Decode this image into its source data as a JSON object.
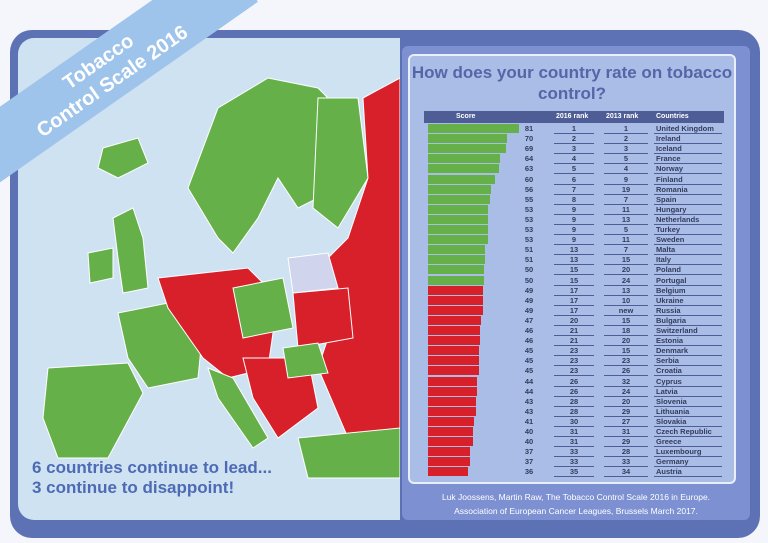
{
  "banner": {
    "line1": "Tobacco",
    "line2": "Control Scale 2016"
  },
  "lead_text": {
    "line1": "6 countries continue to lead...",
    "line2": "3 continue to disappoint!"
  },
  "footer": {
    "line1": "Luk Joossens, Martin Raw, The Tobacco Control Scale 2016 in Europe.",
    "line2": "Association of European Cancer Leagues, Brussels March 2017."
  },
  "colors": {
    "green": "#66b04a",
    "red": "#d8202a",
    "frame": "#5c72b4"
  },
  "chart_data": {
    "type": "bar",
    "title": "How does your country rate on tobacco control?",
    "columns": [
      "Score",
      "2016 rank",
      "2013 rank",
      "Countries"
    ],
    "rows": [
      [
        "81",
        "1",
        "1",
        "United Kingdom"
      ],
      [
        "70",
        "2",
        "2",
        "Ireland"
      ],
      [
        "69",
        "3",
        "3",
        "Iceland"
      ],
      [
        "64",
        "4",
        "5",
        "France"
      ],
      [
        "63",
        "5",
        "4",
        "Norway"
      ],
      [
        "60",
        "6",
        "9",
        "Finland"
      ],
      [
        "56",
        "7",
        "19",
        "Romania"
      ],
      [
        "55",
        "8",
        "7",
        "Spain"
      ],
      [
        "53",
        "9",
        "11",
        "Hungary"
      ],
      [
        "53",
        "9",
        "13",
        "Netherlands"
      ],
      [
        "53",
        "9",
        "5",
        "Turkey"
      ],
      [
        "53",
        "9",
        "11",
        "Sweden"
      ],
      [
        "51",
        "13",
        "7",
        "Malta"
      ],
      [
        "51",
        "13",
        "15",
        "Italy"
      ],
      [
        "50",
        "15",
        "20",
        "Poland"
      ],
      [
        "50",
        "15",
        "24",
        "Portugal"
      ],
      [
        "49",
        "17",
        "13",
        "Belgium"
      ],
      [
        "49",
        "17",
        "10",
        "Ukraine"
      ],
      [
        "49",
        "17",
        "new",
        "Russia"
      ],
      [
        "47",
        "20",
        "15",
        "Bulgaria"
      ],
      [
        "46",
        "21",
        "18",
        "Switzerland"
      ],
      [
        "46",
        "21",
        "20",
        "Estonia"
      ],
      [
        "45",
        "23",
        "15",
        "Denmark"
      ],
      [
        "45",
        "23",
        "23",
        "Serbia"
      ],
      [
        "45",
        "23",
        "26",
        "Croatia"
      ],
      [
        "44",
        "26",
        "32",
        "Cyprus"
      ],
      [
        "44",
        "26",
        "24",
        "Latvia"
      ],
      [
        "43",
        "28",
        "20",
        "Slovenia"
      ],
      [
        "43",
        "28",
        "29",
        "Lithuania"
      ],
      [
        "41",
        "30",
        "27",
        "Slovakia"
      ],
      [
        "40",
        "31",
        "31",
        "Czech Republic"
      ],
      [
        "40",
        "31",
        "29",
        "Greece"
      ],
      [
        "37",
        "33",
        "28",
        "Luxembourg"
      ],
      [
        "37",
        "33",
        "33",
        "Germany"
      ],
      [
        "36",
        "35",
        "34",
        "Austria"
      ]
    ],
    "green_count": 16
  }
}
